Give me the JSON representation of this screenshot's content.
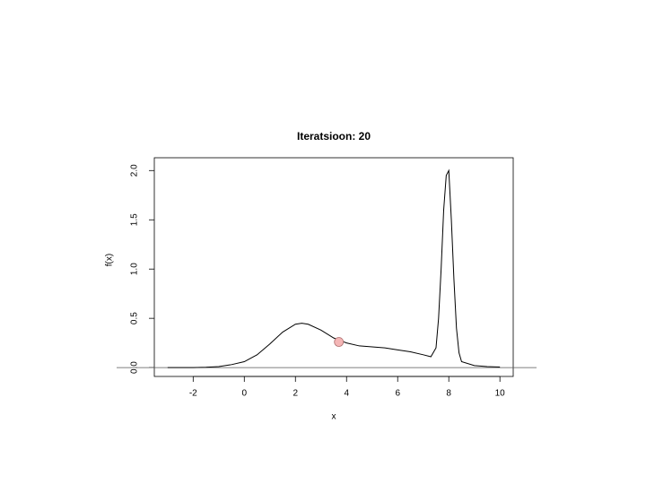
{
  "chart_data": {
    "type": "line",
    "title": "Iteratsioon: 20",
    "xlabel": "x",
    "ylabel": "f(x)",
    "x": [
      -3,
      -2.5,
      -2,
      -1.5,
      -1,
      -0.5,
      0,
      0.5,
      1,
      1.5,
      2,
      2.25,
      2.5,
      3,
      3.5,
      4,
      4.5,
      5,
      5.5,
      6,
      6.5,
      7,
      7.3,
      7.5,
      7.6,
      7.7,
      7.8,
      7.9,
      8,
      8.1,
      8.2,
      8.3,
      8.4,
      8.5,
      9,
      9.5,
      10
    ],
    "series": [
      {
        "color": "#000000",
        "values": [
          0,
          0,
          0,
          0.003,
          0.01,
          0.03,
          0.06,
          0.13,
          0.24,
          0.36,
          0.44,
          0.45,
          0.44,
          0.38,
          0.3,
          0.25,
          0.22,
          0.21,
          0.2,
          0.18,
          0.16,
          0.13,
          0.11,
          0.2,
          0.5,
          1.0,
          1.6,
          1.95,
          2.0,
          1.5,
          0.9,
          0.4,
          0.15,
          0.06,
          0.02,
          0.01,
          0.005
        ]
      }
    ],
    "point": {
      "x": 3.7,
      "y": 0.26,
      "color": "#f4b6b6"
    },
    "hline": 0,
    "xlim": [
      -3.52,
      10.52
    ],
    "ylim": [
      -0.09,
      2.13
    ],
    "xticks": [
      -2,
      0,
      2,
      4,
      6,
      8,
      10
    ],
    "yticks": [
      {
        "value": 0,
        "label": "0.0"
      },
      0.5,
      {
        "value": 1,
        "label": "1.0"
      },
      1.5,
      {
        "value": 2,
        "label": "2.0"
      }
    ]
  }
}
